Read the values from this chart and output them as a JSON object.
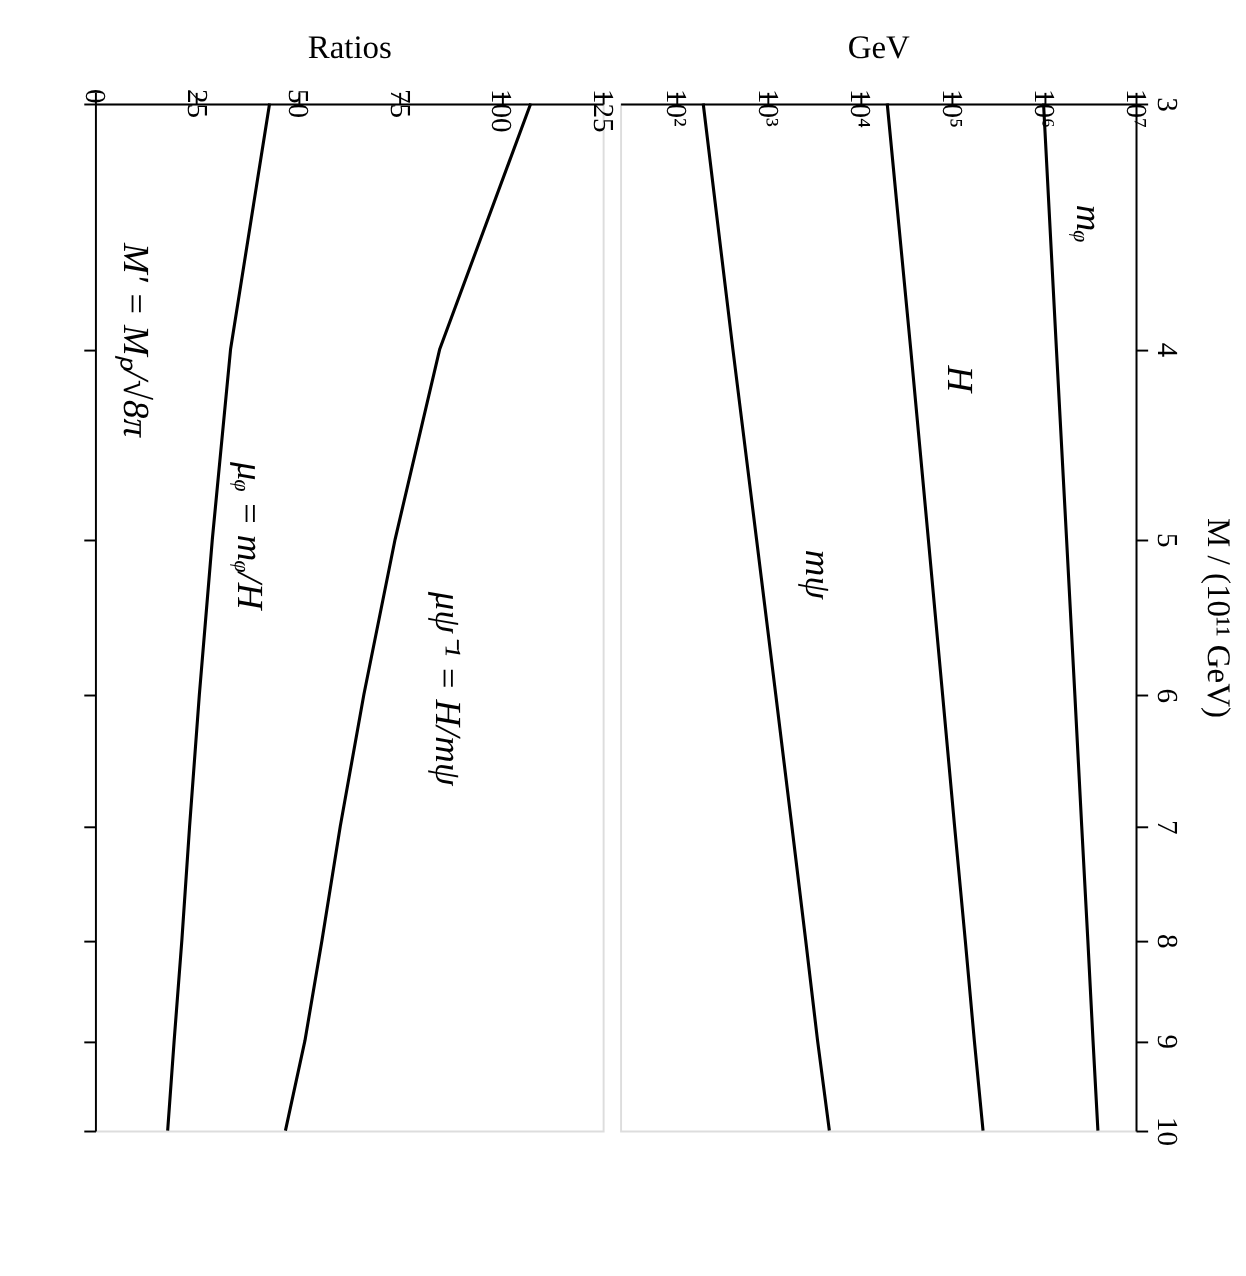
{
  "chart_data": [
    {
      "type": "line",
      "xlabel": "GeV",
      "ylabel": "M / (10¹¹ GeV)",
      "log": "xy",
      "grid": false,
      "legend": false,
      "marker": "none",
      "line_style": "solid",
      "ylim": [
        10,
        3
      ],
      "yticks": [
        3,
        4,
        5,
        6,
        7,
        8,
        9,
        10
      ],
      "xlim": [
        25,
        10000000
      ],
      "xticks": [
        {
          "value": 100,
          "label": "10²"
        },
        {
          "value": 1000,
          "label": "10³"
        },
        {
          "value": 10000,
          "label": "10⁴"
        },
        {
          "value": 100000,
          "label": "10⁵"
        },
        {
          "value": 1000000,
          "label": "10⁶"
        },
        {
          "value": 10000000,
          "label": "10⁷"
        }
      ],
      "series": [
        {
          "color": "#000000",
          "x": [
            1000000,
            1380000,
            1780000,
            2190000,
            2600000,
            3030000,
            3450000,
            3900000
          ],
          "values": [
            3,
            4,
            5,
            6,
            7,
            8,
            9,
            10
          ]
        },
        {
          "color": "#000000",
          "x": [
            20000,
            36000,
            56000,
            80000,
            108000,
            141000,
            177000,
            220000
          ],
          "values": [
            3,
            4,
            5,
            6,
            7,
            8,
            9,
            10
          ]
        },
        {
          "color": "#000000",
          "x": [
            200,
            420,
            760,
            1230,
            1840,
            2600,
            3500,
            4700
          ],
          "values": [
            3,
            4,
            5,
            6,
            7,
            8,
            9,
            10
          ]
        }
      ],
      "annotations": [
        "mᵩ",
        "H",
        "mψ"
      ]
    },
    {
      "type": "line",
      "xlabel": "Ratios",
      "log": "y",
      "grid": false,
      "legend": false,
      "marker": "none",
      "line_style": "solid",
      "tick_labels": "x",
      "ylim": [
        10,
        3
      ],
      "yticks": [
        3,
        4,
        5,
        6,
        7,
        8,
        9,
        10
      ],
      "xlim": [
        0,
        125
      ],
      "xticks": [
        0,
        25,
        50,
        75,
        100,
        125
      ],
      "series": [
        {
          "color": "#000000",
          "x": [
            107.3,
            84.9,
            73.9,
            66.2,
            60.4,
            55.9,
            51.7,
            46.9
          ],
          "values": [
            3,
            4,
            5,
            6,
            7,
            8,
            9,
            10
          ]
        },
        {
          "color": "#000000",
          "x": [
            43.0,
            33.4,
            28.9,
            25.7,
            23.3,
            21.4,
            19.5,
            17.9
          ],
          "values": [
            3,
            4,
            5,
            6,
            7,
            8,
            9,
            10
          ]
        }
      ],
      "annotations": [
        "μψ⁻¹ = H/mψ",
        "μᵩ = mᵩ/H",
        "M′ = Mₚ/√8π"
      ]
    }
  ]
}
